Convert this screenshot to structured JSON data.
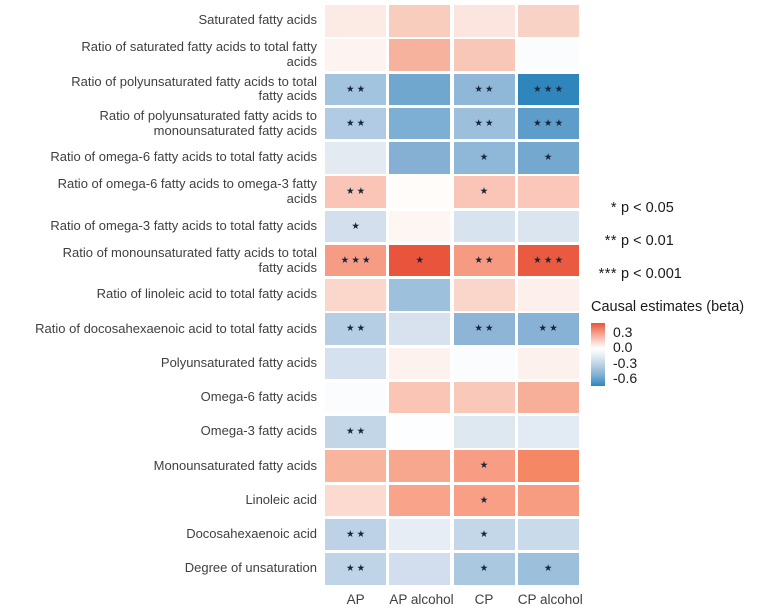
{
  "chart_data": {
    "type": "heatmap",
    "title": "",
    "x_categories": [
      "AP",
      "AP alcohol",
      "CP",
      "CP alcohol"
    ],
    "y_categories": [
      "Saturated fatty acids",
      "Ratio of saturated fatty acids to total fatty\nacids",
      "Ratio of polyunsaturated fatty acids to total\nfatty acids",
      "Ratio of polyunsaturated fatty acids to\nmonounsaturated fatty acids",
      "Ratio of omega-6 fatty acids to total fatty acids",
      "Ratio of omega-6 fatty acids to omega-3 fatty\nacids",
      "Ratio of omega-3 fatty acids to total fatty acids",
      "Ratio of monounsaturated fatty acids to total\nfatty acids",
      "Ratio of linoleic acid to total fatty acids",
      "Ratio of docosahexaenoic acid to total fatty acids",
      "Polyunsaturated fatty acids",
      "Omega-6 fatty acids",
      "Omega-3 fatty acids",
      "Monounsaturated fatty acids",
      "Linoleic acid",
      "Docosahexaenoic acid",
      "Degree of unsaturation"
    ],
    "value_label": "Causal estimates (beta)",
    "color_scale": {
      "domain": [
        0.5,
        0.0,
        -0.75
      ],
      "range": [
        "#e8543c",
        "#ffffff",
        "#2e86bd"
      ],
      "tick_labels": [
        "0.3",
        "0.0",
        "-0.3",
        "-0.6"
      ]
    },
    "cells": [
      {
        "values": [
          0.06,
          0.14,
          0.07,
          0.12
        ],
        "stars": [
          "",
          "",
          "",
          ""
        ],
        "colors": [
          "#fceae4",
          "#f9cdbe",
          "#fce5de",
          "#f9d2c6"
        ]
      },
      {
        "values": [
          0.03,
          0.2,
          0.15,
          0.0
        ],
        "stars": [
          "",
          "",
          "",
          ""
        ],
        "colors": [
          "#fdf4f1",
          "#f7b29e",
          "#f9c7b7",
          "#fafcfe"
        ]
      },
      {
        "values": [
          -0.28,
          -0.42,
          -0.33,
          -0.62
        ],
        "stars": [
          "**",
          "",
          "**",
          "***"
        ],
        "colors": [
          "#a3c4df",
          "#6fa7cf",
          "#8fb8d8",
          "#2e86bd"
        ]
      },
      {
        "values": [
          -0.24,
          -0.38,
          -0.29,
          -0.48
        ],
        "stars": [
          "**",
          "",
          "**",
          "***"
        ],
        "colors": [
          "#b0cbe3",
          "#7cafd3",
          "#9cc0dc",
          "#5e9cc9"
        ]
      },
      {
        "values": [
          -0.09,
          -0.36,
          -0.33,
          -0.41
        ],
        "stars": [
          "",
          "",
          "*",
          "*"
        ],
        "colors": [
          "#e3eaf2",
          "#85b0d3",
          "#8fb7d7",
          "#74a8cf"
        ]
      },
      {
        "values": [
          0.16,
          0.01,
          0.16,
          0.15
        ],
        "stars": [
          "**",
          "",
          "*",
          ""
        ],
        "colors": [
          "#fac4b6",
          "#fffcfa",
          "#fac5b7",
          "#fac7ba"
        ]
      },
      {
        "values": [
          -0.14,
          0.03,
          -0.12,
          -0.11
        ],
        "stars": [
          "*",
          "",
          "",
          ""
        ],
        "colors": [
          "#d3dfec",
          "#fdf6f3",
          "#d7e3ef",
          "#dbe5f0"
        ]
      },
      {
        "values": [
          0.27,
          0.47,
          0.28,
          0.45
        ],
        "stars": [
          "***",
          "*",
          "**",
          "***"
        ],
        "colors": [
          "#f69c84",
          "#e8543c",
          "#f69a81",
          "#e95a40"
        ]
      },
      {
        "values": [
          0.11,
          -0.29,
          0.11,
          0.04
        ],
        "stars": [
          "",
          "",
          "",
          ""
        ],
        "colors": [
          "#fbd7cb",
          "#9dc0dc",
          "#fad6ca",
          "#fdf0ec"
        ]
      },
      {
        "values": [
          -0.22,
          -0.11,
          -0.34,
          -0.36
        ],
        "stars": [
          "**",
          "",
          "**",
          "**"
        ],
        "colors": [
          "#b6cee4",
          "#d8e2ee",
          "#8eb5d6",
          "#88b2d5"
        ]
      },
      {
        "values": [
          -0.13,
          0.04,
          -0.01,
          0.04
        ],
        "stars": [
          "",
          "",
          "",
          ""
        ],
        "colors": [
          "#d5e1ee",
          "#fdf2ee",
          "#fafcfd",
          "#fdf1ed"
        ]
      },
      {
        "values": [
          -0.01,
          0.16,
          0.15,
          0.22
        ],
        "stars": [
          "",
          "",
          "",
          ""
        ],
        "colors": [
          "#fbfcfd",
          "#fac5b5",
          "#fac8b9",
          "#f8af99"
        ]
      },
      {
        "values": [
          -0.19,
          0.0,
          -0.1,
          -0.08
        ],
        "stars": [
          "**",
          "",
          "",
          ""
        ],
        "colors": [
          "#c2d6e8",
          "#fdfeff",
          "#dee8f1",
          "#e2eaf3"
        ]
      },
      {
        "values": [
          0.21,
          0.25,
          0.28,
          0.35
        ],
        "stars": [
          "",
          "",
          "*",
          ""
        ],
        "colors": [
          "#f9b49e",
          "#f8a78f",
          "#f89d83",
          "#f58764"
        ]
      },
      {
        "values": [
          0.11,
          0.26,
          0.27,
          0.28
        ],
        "stars": [
          "",
          "",
          "*",
          ""
        ],
        "colors": [
          "#fcdacf",
          "#f8a38a",
          "#f89f86",
          "#f79c81"
        ]
      },
      {
        "values": [
          -0.2,
          -0.07,
          -0.18,
          -0.16
        ],
        "stars": [
          "**",
          "",
          "*",
          ""
        ],
        "colors": [
          "#bdd2e6",
          "#e7edf4",
          "#c3d7e8",
          "#c9daea"
        ]
      },
      {
        "values": [
          -0.19,
          -0.13,
          -0.26,
          -0.3
        ],
        "stars": [
          "**",
          "",
          "*",
          "*"
        ],
        "colors": [
          "#c0d4e7",
          "#d2deed",
          "#aac8e0",
          "#9cc0dc"
        ]
      }
    ]
  },
  "legend": {
    "significance": [
      {
        "symbol": "*",
        "label": "p < 0.05"
      },
      {
        "symbol": "**",
        "label": "p < 0.01"
      },
      {
        "symbol": "***",
        "label": "p < 0.001"
      }
    ],
    "colorbar": {
      "title": "Causal estimates (beta)",
      "ticks": [
        "0.3",
        "0.0",
        "-0.3",
        "-0.6"
      ]
    }
  }
}
